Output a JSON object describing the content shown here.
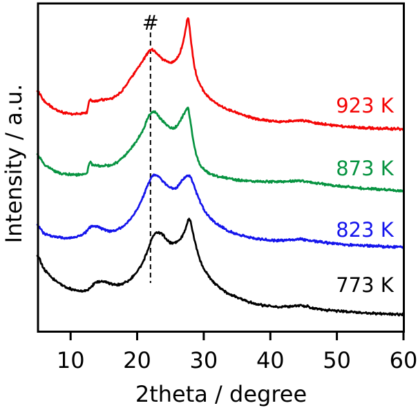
{
  "chart_data": {
    "type": "line",
    "title": "",
    "xlabel": "2theta / degree",
    "ylabel": "Intensity / a.u.",
    "xlim": [
      5,
      60
    ],
    "xticks": [
      10,
      20,
      30,
      40,
      50,
      60
    ],
    "yticks": [],
    "grid": false,
    "legend_position": "right-inline-labels",
    "background": "#ffffff",
    "axis_color": "#000000",
    "annotation": {
      "symbol": "#",
      "x_deg": 22,
      "style": "vertical dashed guide line"
    },
    "series_label_x": 528,
    "series_label_y": [
      163,
      254,
      343,
      423
    ],
    "series": [
      {
        "name": "923 K",
        "color": "#f40505",
        "points": [
          [
            5,
            0.735
          ],
          [
            6,
            0.705
          ],
          [
            7.5,
            0.682
          ],
          [
            9,
            0.669
          ],
          [
            10.5,
            0.666
          ],
          [
            11.8,
            0.667
          ],
          [
            12.45,
            0.67
          ],
          [
            12.7,
            0.697
          ],
          [
            12.9,
            0.708
          ],
          [
            13.2,
            0.704
          ],
          [
            14,
            0.706
          ],
          [
            15,
            0.709
          ],
          [
            16,
            0.711
          ],
          [
            17,
            0.722
          ],
          [
            18,
            0.743
          ],
          [
            19,
            0.773
          ],
          [
            20,
            0.802
          ],
          [
            20.8,
            0.827
          ],
          [
            21.5,
            0.848
          ],
          [
            22,
            0.86
          ],
          [
            22.6,
            0.857
          ],
          [
            23.2,
            0.844
          ],
          [
            23.9,
            0.831
          ],
          [
            24.6,
            0.824
          ],
          [
            25.3,
            0.823
          ],
          [
            25.9,
            0.832
          ],
          [
            26.4,
            0.851
          ],
          [
            26.9,
            0.882
          ],
          [
            27.2,
            0.912
          ],
          [
            27.4,
            0.937
          ],
          [
            27.6,
            0.96
          ],
          [
            27.8,
            0.941
          ],
          [
            28,
            0.901
          ],
          [
            28.3,
            0.853
          ],
          [
            28.6,
            0.811
          ],
          [
            29,
            0.777
          ],
          [
            29.5,
            0.752
          ],
          [
            30.1,
            0.731
          ],
          [
            30.9,
            0.712
          ],
          [
            31.9,
            0.697
          ],
          [
            33,
            0.684
          ],
          [
            34.5,
            0.672
          ],
          [
            36,
            0.661
          ],
          [
            38,
            0.65
          ],
          [
            40,
            0.644
          ],
          [
            41.5,
            0.641
          ],
          [
            43,
            0.643
          ],
          [
            44.2,
            0.646
          ],
          [
            45.2,
            0.643
          ],
          [
            46.5,
            0.638
          ],
          [
            48,
            0.634
          ],
          [
            50,
            0.629
          ],
          [
            52,
            0.626
          ],
          [
            54,
            0.623
          ],
          [
            56,
            0.621
          ],
          [
            58,
            0.62
          ],
          [
            60,
            0.619
          ]
        ]
      },
      {
        "name": "873 K",
        "color": "#069340",
        "points": [
          [
            5,
            0.543
          ],
          [
            6,
            0.512
          ],
          [
            7.5,
            0.491
          ],
          [
            9,
            0.482
          ],
          [
            10.5,
            0.48
          ],
          [
            11.8,
            0.481
          ],
          [
            12.45,
            0.484
          ],
          [
            12.7,
            0.507
          ],
          [
            12.9,
            0.517
          ],
          [
            13.2,
            0.512
          ],
          [
            14,
            0.508
          ],
          [
            15,
            0.507
          ],
          [
            16,
            0.509
          ],
          [
            17,
            0.518
          ],
          [
            18,
            0.535
          ],
          [
            19,
            0.558
          ],
          [
            20,
            0.585
          ],
          [
            21,
            0.621
          ],
          [
            21.6,
            0.651
          ],
          [
            22.1,
            0.669
          ],
          [
            22.5,
            0.672
          ],
          [
            23.1,
            0.661
          ],
          [
            23.9,
            0.642
          ],
          [
            24.7,
            0.627
          ],
          [
            25.3,
            0.622
          ],
          [
            25.9,
            0.627
          ],
          [
            26.4,
            0.642
          ],
          [
            26.9,
            0.661
          ],
          [
            27.3,
            0.675
          ],
          [
            27.6,
            0.684
          ],
          [
            27.8,
            0.667
          ],
          [
            28.05,
            0.636
          ],
          [
            28.35,
            0.592
          ],
          [
            28.7,
            0.556
          ],
          [
            29.1,
            0.526
          ],
          [
            29.6,
            0.505
          ],
          [
            30.3,
            0.491
          ],
          [
            31.1,
            0.482
          ],
          [
            32.1,
            0.475
          ],
          [
            33.5,
            0.469
          ],
          [
            35,
            0.464
          ],
          [
            37,
            0.461
          ],
          [
            39,
            0.459
          ],
          [
            41,
            0.458
          ],
          [
            42.5,
            0.459
          ],
          [
            44.2,
            0.462
          ],
          [
            45.2,
            0.459
          ],
          [
            46.5,
            0.455
          ],
          [
            48,
            0.451
          ],
          [
            50,
            0.446
          ],
          [
            52,
            0.442
          ],
          [
            54,
            0.438
          ],
          [
            56,
            0.435
          ],
          [
            58,
            0.433
          ],
          [
            60,
            0.429
          ]
        ]
      },
      {
        "name": "823 K",
        "color": "#1414ec",
        "points": [
          [
            5,
            0.324
          ],
          [
            6,
            0.301
          ],
          [
            7.5,
            0.291
          ],
          [
            9,
            0.287
          ],
          [
            10.5,
            0.288
          ],
          [
            11.5,
            0.295
          ],
          [
            12.3,
            0.305
          ],
          [
            13,
            0.32
          ],
          [
            13.6,
            0.322
          ],
          [
            14.3,
            0.318
          ],
          [
            15.2,
            0.311
          ],
          [
            16,
            0.307
          ],
          [
            17,
            0.312
          ],
          [
            18,
            0.324
          ],
          [
            19,
            0.345
          ],
          [
            20,
            0.375
          ],
          [
            21,
            0.417
          ],
          [
            21.7,
            0.453
          ],
          [
            22.3,
            0.475
          ],
          [
            22.7,
            0.479
          ],
          [
            23.3,
            0.472
          ],
          [
            24.1,
            0.455
          ],
          [
            24.8,
            0.442
          ],
          [
            25.4,
            0.438
          ],
          [
            26,
            0.443
          ],
          [
            26.5,
            0.456
          ],
          [
            27,
            0.468
          ],
          [
            27.4,
            0.476
          ],
          [
            27.7,
            0.479
          ],
          [
            28,
            0.473
          ],
          [
            28.4,
            0.453
          ],
          [
            28.9,
            0.425
          ],
          [
            29.5,
            0.396
          ],
          [
            30.2,
            0.368
          ],
          [
            31.1,
            0.345
          ],
          [
            32.2,
            0.326
          ],
          [
            33.4,
            0.312
          ],
          [
            35,
            0.298
          ],
          [
            37,
            0.288
          ],
          [
            39,
            0.282
          ],
          [
            41,
            0.279
          ],
          [
            42.5,
            0.28
          ],
          [
            44.2,
            0.283
          ],
          [
            45.2,
            0.281
          ],
          [
            46.5,
            0.277
          ],
          [
            48,
            0.273
          ],
          [
            50,
            0.269
          ],
          [
            52,
            0.266
          ],
          [
            54,
            0.264
          ],
          [
            56,
            0.262
          ],
          [
            58,
            0.26
          ],
          [
            60,
            0.259
          ]
        ]
      },
      {
        "name": "773 K",
        "color": "#000000",
        "points": [
          [
            5,
            0.234
          ],
          [
            6,
            0.192
          ],
          [
            7.5,
            0.16
          ],
          [
            9,
            0.141
          ],
          [
            10,
            0.132
          ],
          [
            11,
            0.126
          ],
          [
            12,
            0.125
          ],
          [
            12.8,
            0.131
          ],
          [
            13.4,
            0.145
          ],
          [
            14.1,
            0.153
          ],
          [
            14.7,
            0.154
          ],
          [
            15.5,
            0.151
          ],
          [
            16.3,
            0.145
          ],
          [
            17.1,
            0.144
          ],
          [
            18,
            0.149
          ],
          [
            19,
            0.162
          ],
          [
            20,
            0.185
          ],
          [
            21,
            0.219
          ],
          [
            21.7,
            0.255
          ],
          [
            22.3,
            0.288
          ],
          [
            22.8,
            0.301
          ],
          [
            23.3,
            0.302
          ],
          [
            23.8,
            0.297
          ],
          [
            24.5,
            0.28
          ],
          [
            25.1,
            0.272
          ],
          [
            25.7,
            0.273
          ],
          [
            26.3,
            0.279
          ],
          [
            26.8,
            0.293
          ],
          [
            27.2,
            0.312
          ],
          [
            27.5,
            0.331
          ],
          [
            27.75,
            0.345
          ],
          [
            28,
            0.337
          ],
          [
            28.3,
            0.309
          ],
          [
            28.7,
            0.272
          ],
          [
            29.2,
            0.234
          ],
          [
            29.8,
            0.202
          ],
          [
            30.5,
            0.177
          ],
          [
            31.3,
            0.156
          ],
          [
            32.3,
            0.137
          ],
          [
            33.5,
            0.12
          ],
          [
            35,
            0.105
          ],
          [
            37,
            0.091
          ],
          [
            39,
            0.081
          ],
          [
            41,
            0.077
          ],
          [
            42.5,
            0.078
          ],
          [
            44.2,
            0.081
          ],
          [
            45.2,
            0.079
          ],
          [
            46.5,
            0.073
          ],
          [
            48,
            0.068
          ],
          [
            50,
            0.064
          ],
          [
            52,
            0.061
          ],
          [
            54,
            0.058
          ],
          [
            56,
            0.056
          ],
          [
            58,
            0.054
          ],
          [
            60,
            0.053
          ]
        ]
      }
    ]
  }
}
